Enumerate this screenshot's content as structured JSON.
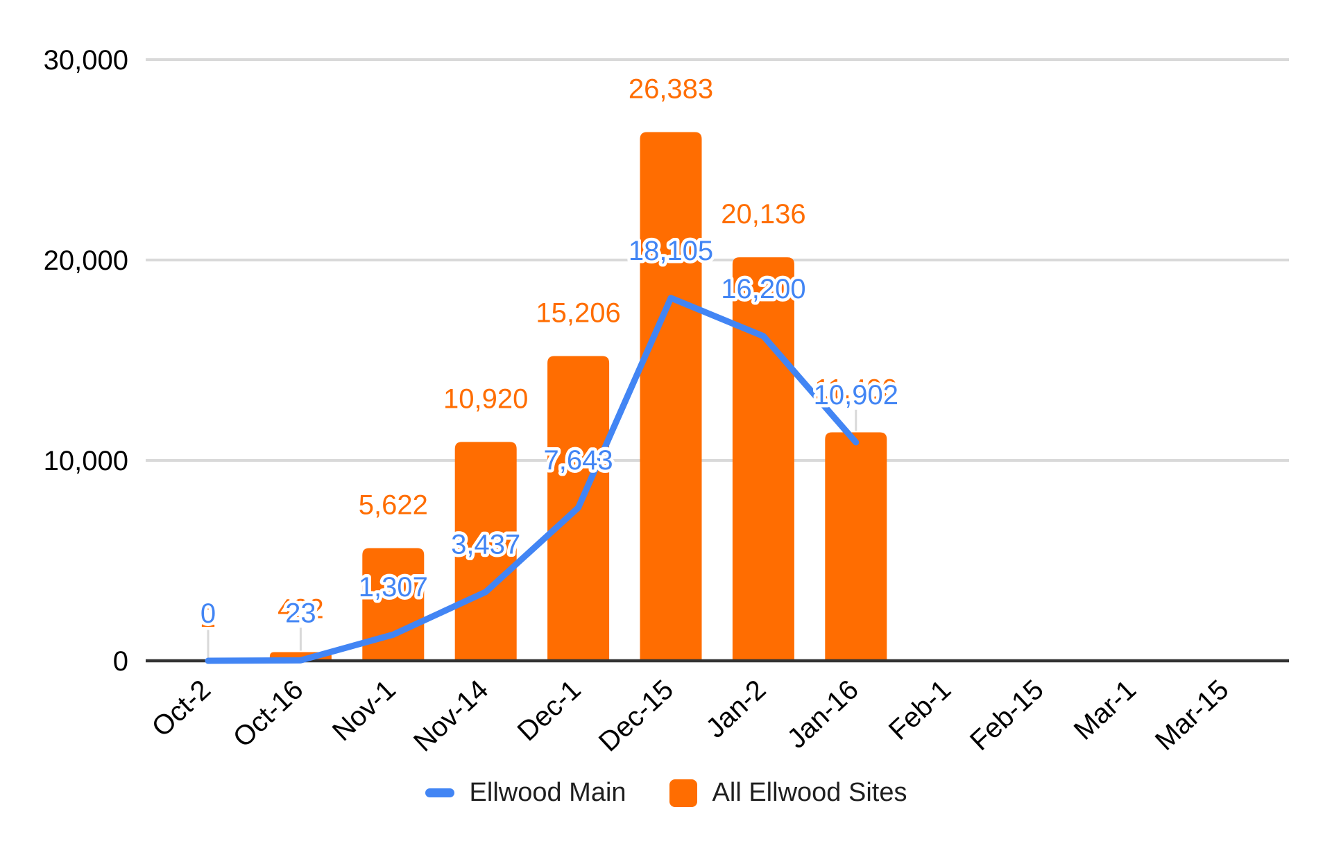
{
  "colors": {
    "blue": "#4285f4",
    "orange": "#ff6d01",
    "gridline": "#d9d9d9",
    "axis_line": "#333333",
    "leader_line": "#d9d9d9",
    "tick_text": "#000000",
    "legend_text": "#1f1f1f",
    "background": "#ffffff"
  },
  "legend": {
    "position": "bottom"
  },
  "chart_data": {
    "type": "combo",
    "categories": [
      "Oct-2",
      "Oct-16",
      "Nov-1",
      "Nov-14",
      "Dec-1",
      "Dec-15",
      "Jan-2",
      "Jan-16",
      "Feb-1",
      "Feb-15",
      "Mar-1",
      "Mar-15"
    ],
    "series": [
      {
        "name": "Ellwood Main",
        "type": "line",
        "color": "#4285f4",
        "values": [
          0,
          23,
          1307,
          3437,
          7643,
          18105,
          16200,
          10902,
          null,
          null,
          null,
          null
        ],
        "labels": [
          "0",
          "23",
          "1,307",
          "3,437",
          "7,643",
          "18,105",
          "16,200",
          "10,902"
        ]
      },
      {
        "name": "All Ellwood Sites",
        "type": "bar",
        "color": "#ff6d01",
        "values": [
          2,
          432,
          5622,
          10920,
          15206,
          26383,
          20136,
          11400,
          null,
          null,
          null,
          null
        ],
        "labels": [
          "2",
          "432",
          "5,622",
          "10,920",
          "15,206",
          "26,383",
          "20,136",
          "11,400"
        ],
        "occluded_label_indices": [
          0,
          1,
          7
        ]
      }
    ],
    "yticks": [
      {
        "value": 0,
        "label": "0"
      },
      {
        "value": 10000,
        "label": "10,000"
      },
      {
        "value": 20000,
        "label": "20,000"
      },
      {
        "value": 30000,
        "label": "30,000"
      }
    ],
    "ylim": [
      0,
      30000
    ],
    "grid": true,
    "legend_position": "bottom",
    "leader_line_indices": [
      0,
      1,
      7
    ]
  }
}
